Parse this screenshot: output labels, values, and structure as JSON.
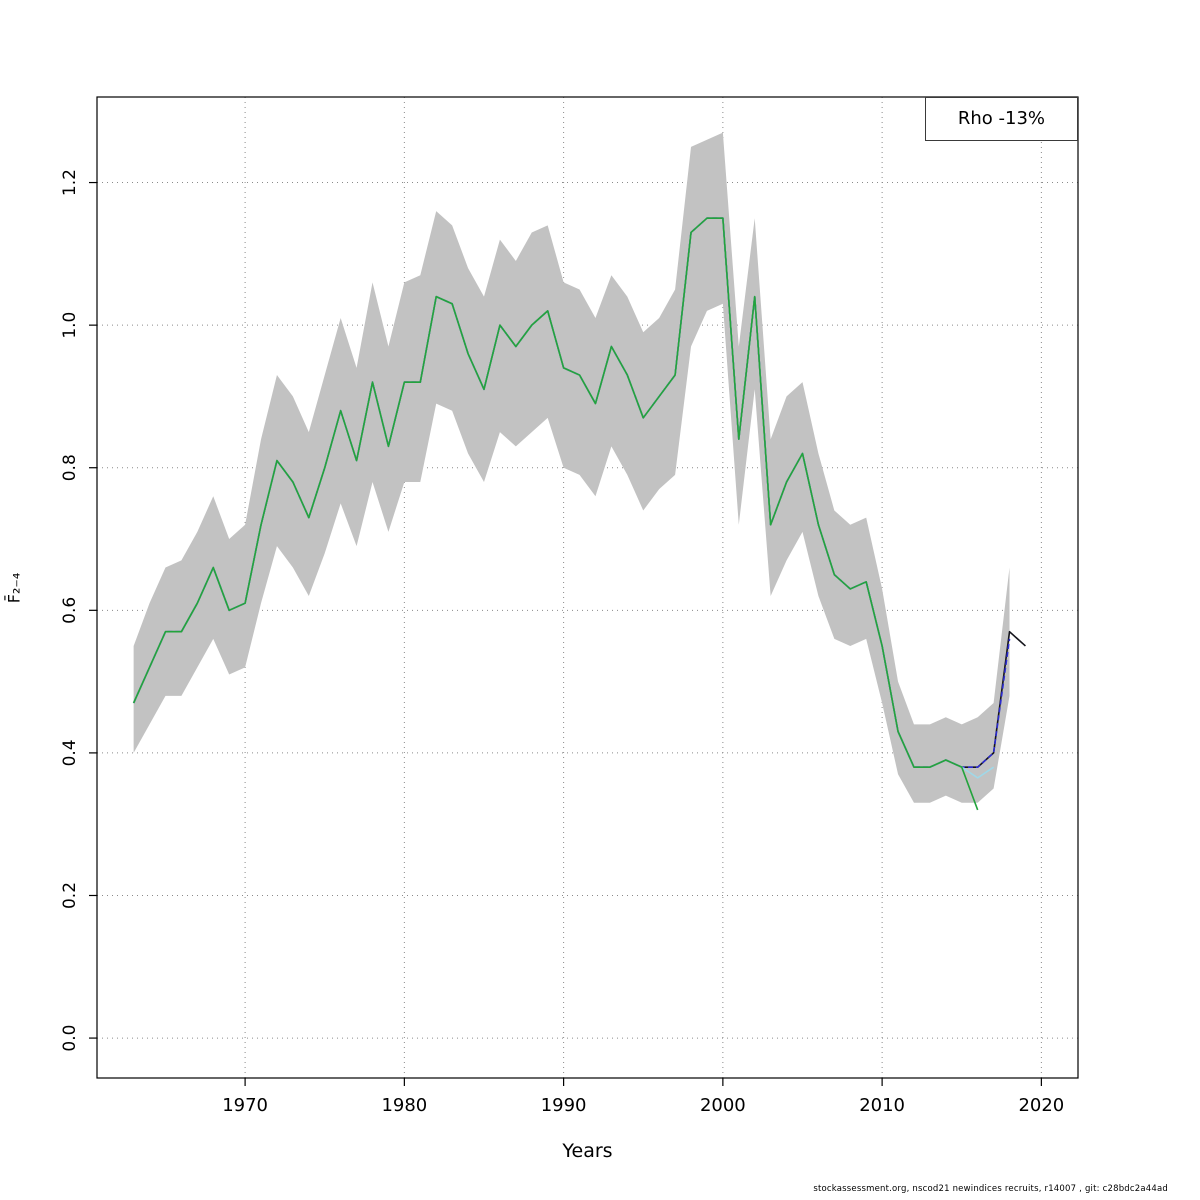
{
  "legend": {
    "label": "Rho -13%"
  },
  "footer": {
    "credit": "stockassessment.org, nscod21 newindices recruits, r14007 , git: c28bdc2a44ad"
  },
  "chart_data": {
    "type": "line",
    "title": "",
    "xlabel": "Years",
    "ylabel": "F̄₂₋₄",
    "xlim": [
      1960.7,
      2022.3
    ],
    "ylim": [
      -0.056,
      1.32
    ],
    "grid": true,
    "legend_position": "top-right",
    "x_ticks": {
      "values": [
        1970,
        1980,
        1990,
        2000,
        2010,
        2020
      ],
      "labels": [
        "1970",
        "1980",
        "1990",
        "2000",
        "2010",
        "2020"
      ]
    },
    "y_ticks": {
      "values": [
        0.0,
        0.2,
        0.4,
        0.6,
        0.8,
        1.0,
        1.2
      ],
      "labels": [
        "0.0",
        "0.2",
        "0.4",
        "0.6",
        "0.8",
        "1.0",
        "1.2"
      ]
    },
    "band": {
      "name": "confidence-band",
      "color": "#c2c2c2",
      "start_year": 1963,
      "lower": [
        0.4,
        0.44,
        0.48,
        0.48,
        0.52,
        0.56,
        0.51,
        0.52,
        0.61,
        0.69,
        0.66,
        0.62,
        0.68,
        0.75,
        0.69,
        0.78,
        0.71,
        0.78,
        0.78,
        0.89,
        0.88,
        0.82,
        0.78,
        0.85,
        0.83,
        0.85,
        0.87,
        0.8,
        0.79,
        0.76,
        0.83,
        0.79,
        0.74,
        0.77,
        0.79,
        0.97,
        1.02,
        1.03,
        0.72,
        0.91,
        0.62,
        0.67,
        0.71,
        0.62,
        0.56,
        0.55,
        0.56,
        0.47,
        0.37,
        0.33,
        0.33,
        0.34,
        0.33,
        0.33,
        0.35,
        0.48
      ],
      "upper": [
        0.55,
        0.61,
        0.66,
        0.67,
        0.71,
        0.76,
        0.7,
        0.72,
        0.84,
        0.93,
        0.9,
        0.85,
        0.93,
        1.01,
        0.94,
        1.06,
        0.97,
        1.06,
        1.07,
        1.16,
        1.14,
        1.08,
        1.04,
        1.12,
        1.09,
        1.13,
        1.14,
        1.06,
        1.05,
        1.01,
        1.07,
        1.04,
        0.99,
        1.01,
        1.05,
        1.25,
        1.26,
        1.27,
        0.97,
        1.15,
        0.84,
        0.9,
        0.92,
        0.82,
        0.74,
        0.72,
        0.73,
        0.63,
        0.5,
        0.44,
        0.44,
        0.45,
        0.44,
        0.45,
        0.47,
        0.66
      ]
    },
    "series": [
      {
        "name": "base-run",
        "color": "#15151c",
        "dash": null,
        "start_year": 1963,
        "values": [
          0.47,
          0.52,
          0.57,
          0.57,
          0.61,
          0.66,
          0.6,
          0.61,
          0.72,
          0.81,
          0.78,
          0.73,
          0.8,
          0.88,
          0.81,
          0.92,
          0.83,
          0.92,
          0.92,
          1.04,
          1.03,
          0.96,
          0.91,
          1.0,
          0.97,
          1.0,
          1.02,
          0.94,
          0.93,
          0.89,
          0.97,
          0.93,
          0.87,
          0.9,
          0.93,
          1.13,
          1.15,
          1.15,
          0.84,
          1.04,
          0.72,
          0.78,
          0.82,
          0.72,
          0.65,
          0.63,
          0.64,
          0.55,
          0.43,
          0.38,
          0.38,
          0.39,
          0.38,
          0.38,
          0.4,
          0.57,
          0.55
        ]
      },
      {
        "name": "retro-run-blue",
        "color": "#2b2bd0",
        "dash": "5 3",
        "start_year": 1963,
        "values": [
          0.47,
          0.52,
          0.57,
          0.57,
          0.61,
          0.66,
          0.6,
          0.61,
          0.72,
          0.81,
          0.78,
          0.73,
          0.8,
          0.88,
          0.81,
          0.92,
          0.83,
          0.92,
          0.92,
          1.04,
          1.03,
          0.96,
          0.91,
          1.0,
          0.97,
          1.0,
          1.02,
          0.94,
          0.93,
          0.89,
          0.97,
          0.93,
          0.87,
          0.9,
          0.93,
          1.13,
          1.15,
          1.15,
          0.84,
          1.04,
          0.72,
          0.78,
          0.82,
          0.72,
          0.65,
          0.63,
          0.64,
          0.55,
          0.43,
          0.38,
          0.38,
          0.39,
          0.38,
          0.38,
          0.4,
          0.56
        ]
      },
      {
        "name": "retro-run-lightblue",
        "color": "#9fd8e8",
        "dash": null,
        "start_year": 1963,
        "values": [
          0.47,
          0.52,
          0.57,
          0.57,
          0.61,
          0.66,
          0.6,
          0.61,
          0.72,
          0.81,
          0.78,
          0.73,
          0.8,
          0.88,
          0.81,
          0.92,
          0.83,
          0.92,
          0.92,
          1.04,
          1.03,
          0.96,
          0.91,
          1.0,
          0.97,
          1.0,
          1.02,
          0.94,
          0.93,
          0.89,
          0.97,
          0.93,
          0.87,
          0.9,
          0.93,
          1.13,
          1.15,
          1.15,
          0.84,
          1.04,
          0.72,
          0.78,
          0.82,
          0.72,
          0.65,
          0.63,
          0.64,
          0.55,
          0.43,
          0.38,
          0.38,
          0.39,
          0.38,
          0.365,
          0.38
        ]
      },
      {
        "name": "retro-run-green",
        "color": "#23a33c",
        "dash": null,
        "start_year": 1963,
        "values": [
          0.47,
          0.52,
          0.57,
          0.57,
          0.61,
          0.66,
          0.6,
          0.61,
          0.72,
          0.81,
          0.78,
          0.73,
          0.8,
          0.88,
          0.81,
          0.92,
          0.83,
          0.92,
          0.92,
          1.04,
          1.03,
          0.96,
          0.91,
          1.0,
          0.97,
          1.0,
          1.02,
          0.94,
          0.93,
          0.89,
          0.97,
          0.93,
          0.87,
          0.9,
          0.93,
          1.13,
          1.15,
          1.15,
          0.84,
          1.04,
          0.72,
          0.78,
          0.82,
          0.72,
          0.65,
          0.63,
          0.64,
          0.55,
          0.43,
          0.38,
          0.38,
          0.39,
          0.38,
          0.32
        ]
      }
    ]
  }
}
